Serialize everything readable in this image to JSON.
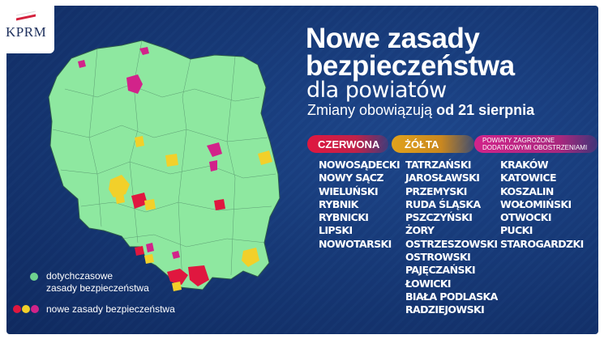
{
  "logo": {
    "text": "KPRM"
  },
  "header": {
    "title_line1": "Nowe zasady",
    "title_line2": "bezpieczeństwa",
    "subtitle": "dla powiatów",
    "note_prefix": "Zmiany obowiązują ",
    "note_date": "od 21 sierpnia"
  },
  "categories": [
    {
      "label": "CZERWONA",
      "color": "#e0173f",
      "items": [
        "NOWOSĄDECKI",
        "NOWY SĄCZ",
        "WIELUŃSKI",
        "RYBNIK",
        "RYBNICKI",
        "LIPSKI",
        "NOWOTARSKI"
      ]
    },
    {
      "label": "ŻÓŁTA",
      "color": "#e1a21c",
      "items": [
        "TATRZAŃSKI",
        "JAROSŁAWSKI",
        "PRZEMYSKI",
        "RUDA ŚLĄSKA",
        "PSZCZYŃSKI",
        "ŻORY",
        "OSTRZESZOWSKI",
        "OSTROWSKI",
        "PAJĘCZAŃSKI",
        "ŁOWICKI",
        "BIAŁA PODLASKA",
        "RADZIEJOWSKI"
      ]
    },
    {
      "label_line1": "POWIATY ZAGROŻONE",
      "label_line2": "DODATKOWYMI OBOSTRZENIAMI",
      "color": "#d2238a",
      "items": [
        "KRAKÓW",
        "KATOWICE",
        "KOSZALIN",
        "WOŁOMIŃSKI",
        "OTWOCKI",
        "PUCKI",
        "STAROGARDZKI"
      ]
    }
  ],
  "legend": {
    "existing_line1": "dotychczasowe",
    "existing_line2": "zasady bezpieczeństwa",
    "existing_color": "#6fd38f",
    "new": "nowe zasady bezpieczeństwa",
    "new_colors": [
      "#e0173f",
      "#f2d02a",
      "#d2238a"
    ]
  },
  "colors": {
    "background": "#183b7a",
    "map_green": "#8ee8a0"
  }
}
